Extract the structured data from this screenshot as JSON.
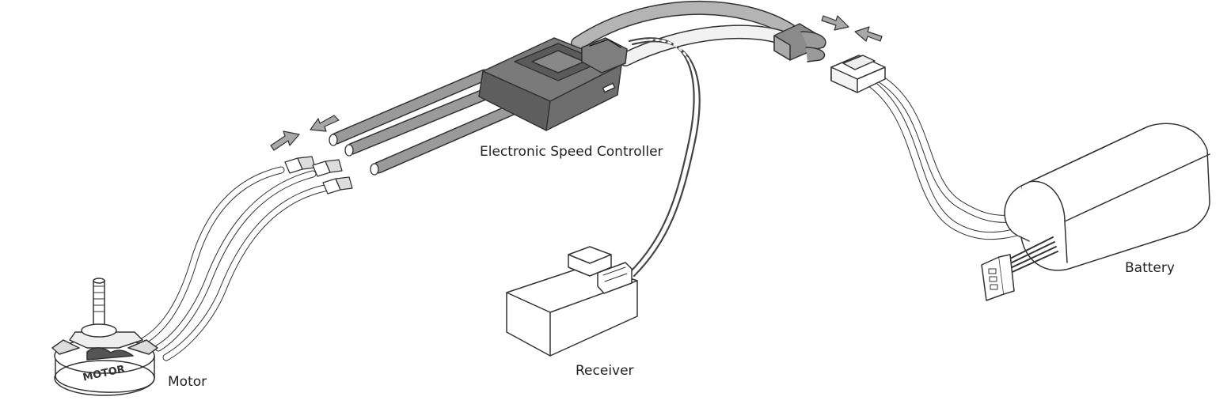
{
  "labels": {
    "esc": "Electronic Speed Controller",
    "receiver": "Receiver",
    "battery": "Battery",
    "motor": "Motor"
  },
  "motor_embossed_text": "MOTOR",
  "colors": {
    "outline": "#333333",
    "wire_dark": "#9a9a9a",
    "wire_light": "#eeeeee",
    "body_fill": "#ffffff",
    "esc_fill": "#6a6a6a",
    "arrow_fill": "#a8a8a8"
  }
}
